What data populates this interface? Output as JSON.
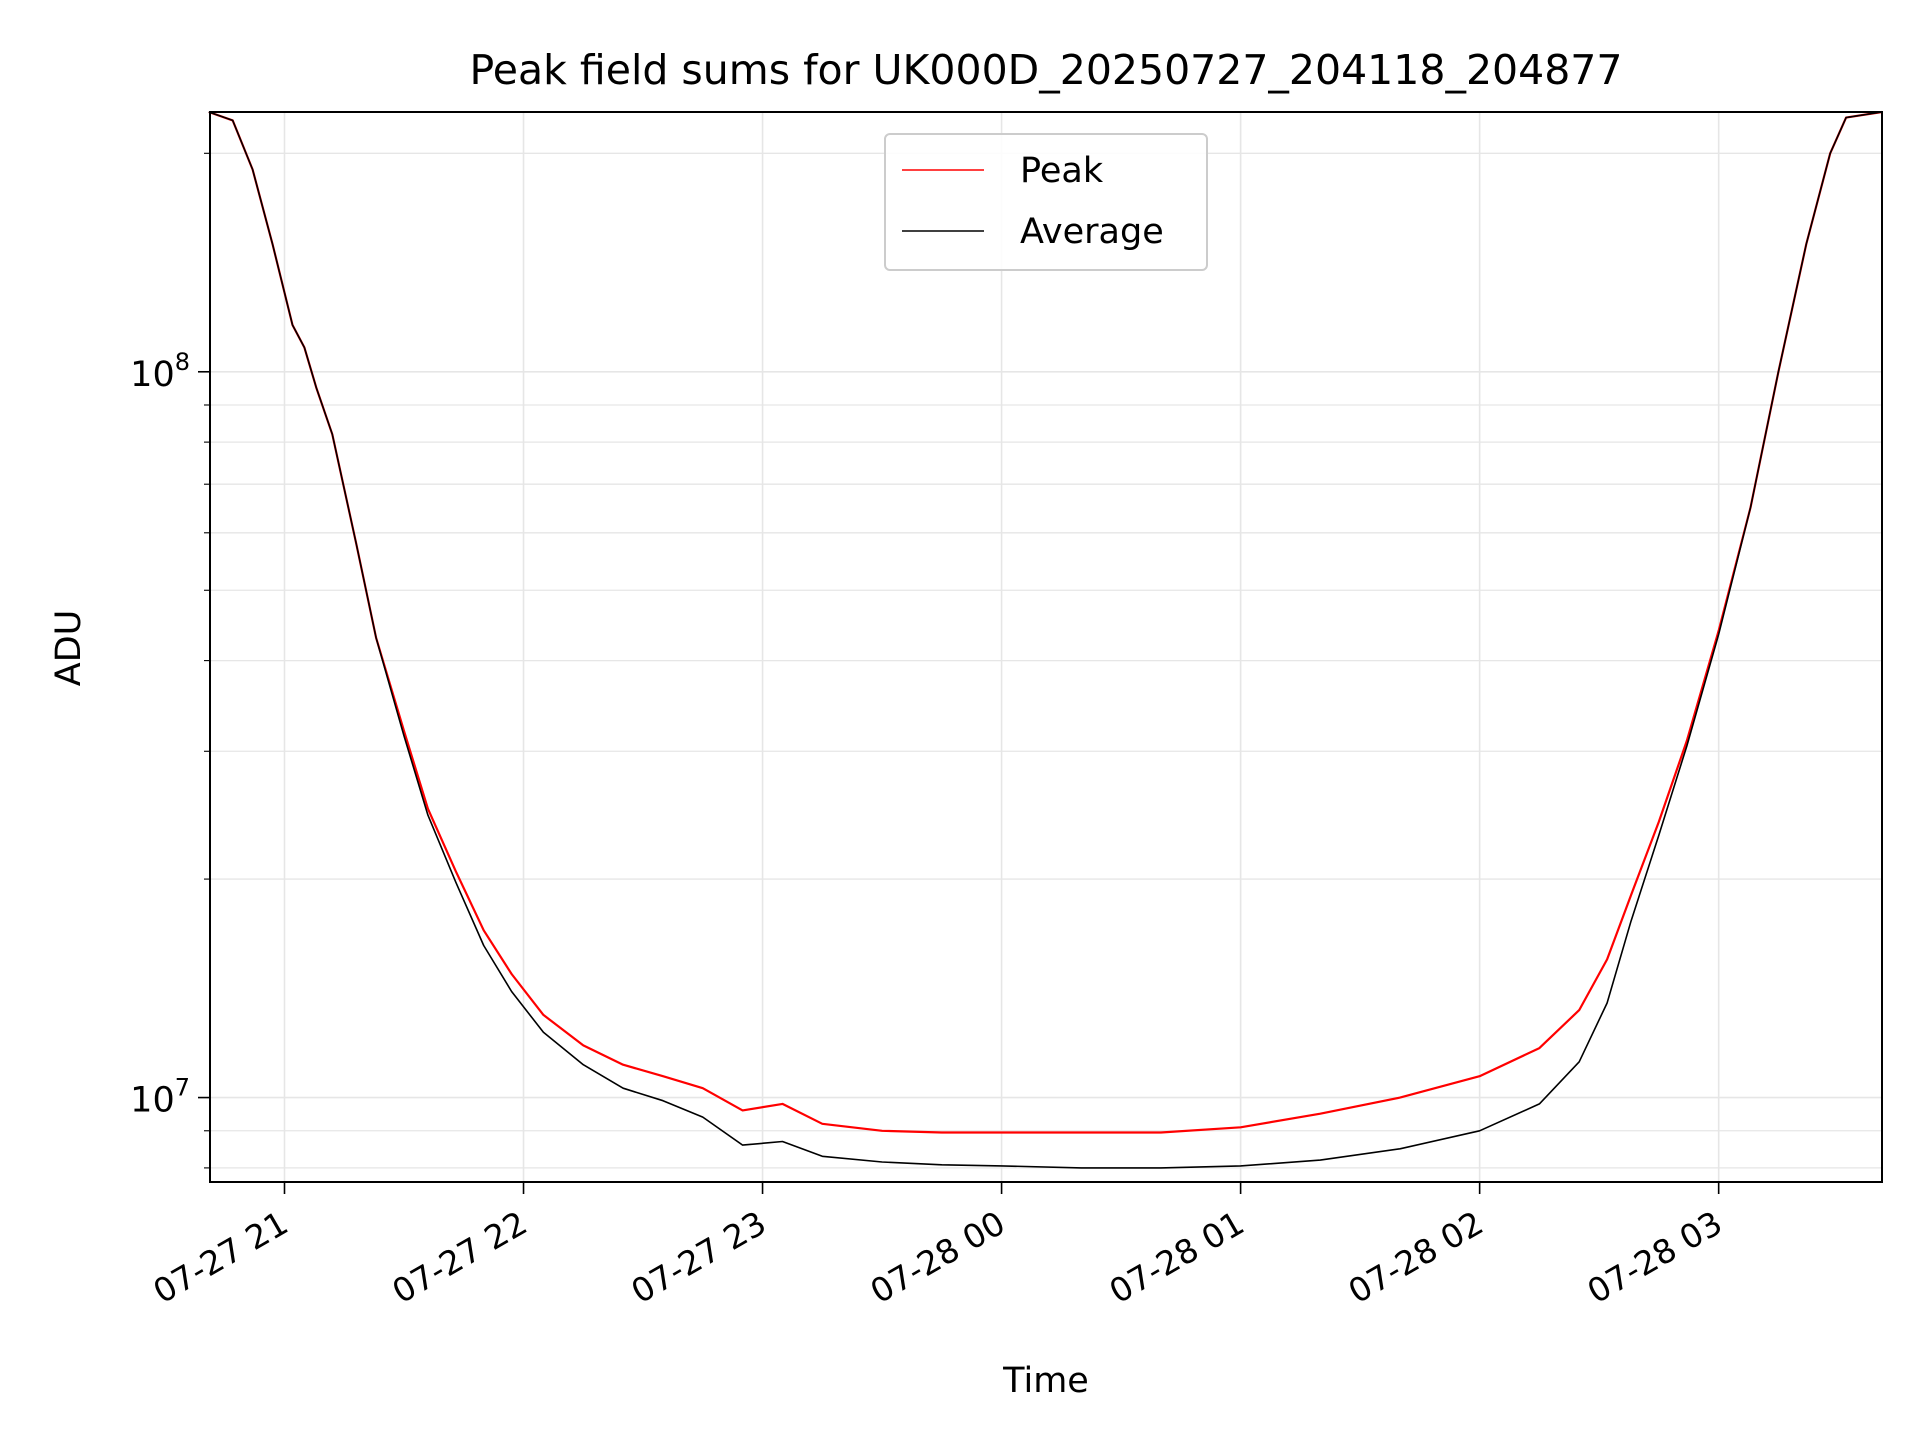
{
  "chart_data": {
    "type": "line",
    "title": "Peak field sums for UK000D_20250727_204118_204877",
    "xlabel": "Time",
    "ylabel": "ADU",
    "y_scale": "log",
    "grid": true,
    "legend_position": "upper center",
    "x_range": [
      "2025-07-27T20:41:18",
      "2025-07-28T03:41:00"
    ],
    "ylim": [
      7650000,
      228000000
    ],
    "x_ticks": [
      {
        "time": "2025-07-27T21:00",
        "label": "07-27 21"
      },
      {
        "time": "2025-07-27T22:00",
        "label": "07-27 22"
      },
      {
        "time": "2025-07-27T23:00",
        "label": "07-27 23"
      },
      {
        "time": "2025-07-28T00:00",
        "label": "07-28 00"
      },
      {
        "time": "2025-07-28T01:00",
        "label": "07-28 01"
      },
      {
        "time": "2025-07-28T02:00",
        "label": "07-28 02"
      },
      {
        "time": "2025-07-28T03:00",
        "label": "07-28 03"
      }
    ],
    "y_ticks": [
      {
        "value": 10000000,
        "base": "10",
        "exp": "7"
      },
      {
        "value": 100000000,
        "base": "10",
        "exp": "8"
      }
    ],
    "series": [
      {
        "name": "Peak",
        "color": "#ff0000",
        "points": [
          [
            "2025-07-27T20:41",
            228000000
          ],
          [
            "2025-07-27T20:47",
            222000000
          ],
          [
            "2025-07-27T20:52",
            190000000
          ],
          [
            "2025-07-27T20:57",
            150000000
          ],
          [
            "2025-07-27T21:02",
            116000000
          ],
          [
            "2025-07-27T21:05",
            108000000
          ],
          [
            "2025-07-27T21:08",
            95000000
          ],
          [
            "2025-07-27T21:12",
            82000000
          ],
          [
            "2025-07-27T21:18",
            58000000
          ],
          [
            "2025-07-27T21:23",
            43000000
          ],
          [
            "2025-07-27T21:30",
            32000000
          ],
          [
            "2025-07-27T21:36",
            25000000
          ],
          [
            "2025-07-27T21:43",
            20500000
          ],
          [
            "2025-07-27T21:50",
            17000000
          ],
          [
            "2025-07-27T21:57",
            14800000
          ],
          [
            "2025-07-27T22:05",
            13000000
          ],
          [
            "2025-07-27T22:15",
            11800000
          ],
          [
            "2025-07-27T22:25",
            11100000
          ],
          [
            "2025-07-27T22:35",
            10700000
          ],
          [
            "2025-07-27T22:45",
            10300000
          ],
          [
            "2025-07-27T22:55",
            9600000
          ],
          [
            "2025-07-27T23:05",
            9800000
          ],
          [
            "2025-07-27T23:15",
            9200000
          ],
          [
            "2025-07-27T23:30",
            9000000
          ],
          [
            "2025-07-27T23:45",
            8950000
          ],
          [
            "2025-07-28T00:00",
            8950000
          ],
          [
            "2025-07-28T00:20",
            8950000
          ],
          [
            "2025-07-28T00:40",
            8950000
          ],
          [
            "2025-07-28T01:00",
            9100000
          ],
          [
            "2025-07-28T01:20",
            9500000
          ],
          [
            "2025-07-28T01:40",
            10000000
          ],
          [
            "2025-07-28T02:00",
            10700000
          ],
          [
            "2025-07-28T02:15",
            11700000
          ],
          [
            "2025-07-28T02:25",
            13200000
          ],
          [
            "2025-07-28T02:32",
            15500000
          ],
          [
            "2025-07-28T02:38",
            19000000
          ],
          [
            "2025-07-28T02:45",
            24000000
          ],
          [
            "2025-07-28T02:52",
            31000000
          ],
          [
            "2025-07-28T03:00",
            44000000
          ],
          [
            "2025-07-28T03:08",
            65000000
          ],
          [
            "2025-07-28T03:15",
            100000000
          ],
          [
            "2025-07-28T03:22",
            150000000
          ],
          [
            "2025-07-28T03:28",
            200000000
          ],
          [
            "2025-07-28T03:32",
            224000000
          ],
          [
            "2025-07-28T03:41",
            228000000
          ]
        ]
      },
      {
        "name": "Average",
        "color": "#000000",
        "points": [
          [
            "2025-07-27T20:41",
            228000000
          ],
          [
            "2025-07-27T20:47",
            222000000
          ],
          [
            "2025-07-27T20:52",
            190000000
          ],
          [
            "2025-07-27T20:57",
            150000000
          ],
          [
            "2025-07-27T21:02",
            116000000
          ],
          [
            "2025-07-27T21:05",
            108000000
          ],
          [
            "2025-07-27T21:08",
            95000000
          ],
          [
            "2025-07-27T21:12",
            82000000
          ],
          [
            "2025-07-27T21:18",
            58000000
          ],
          [
            "2025-07-27T21:23",
            43000000
          ],
          [
            "2025-07-27T21:30",
            31500000
          ],
          [
            "2025-07-27T21:36",
            24500000
          ],
          [
            "2025-07-27T21:43",
            19800000
          ],
          [
            "2025-07-27T21:50",
            16200000
          ],
          [
            "2025-07-27T21:57",
            14000000
          ],
          [
            "2025-07-27T22:05",
            12300000
          ],
          [
            "2025-07-27T22:15",
            11100000
          ],
          [
            "2025-07-27T22:25",
            10300000
          ],
          [
            "2025-07-27T22:35",
            9900000
          ],
          [
            "2025-07-27T22:45",
            9400000
          ],
          [
            "2025-07-27T22:55",
            8600000
          ],
          [
            "2025-07-27T23:05",
            8700000
          ],
          [
            "2025-07-27T23:15",
            8300000
          ],
          [
            "2025-07-27T23:30",
            8150000
          ],
          [
            "2025-07-27T23:45",
            8080000
          ],
          [
            "2025-07-28T00:00",
            8050000
          ],
          [
            "2025-07-28T00:20",
            8000000
          ],
          [
            "2025-07-28T00:40",
            8000000
          ],
          [
            "2025-07-28T01:00",
            8050000
          ],
          [
            "2025-07-28T01:20",
            8200000
          ],
          [
            "2025-07-28T01:40",
            8500000
          ],
          [
            "2025-07-28T02:00",
            9000000
          ],
          [
            "2025-07-28T02:15",
            9800000
          ],
          [
            "2025-07-28T02:25",
            11200000
          ],
          [
            "2025-07-28T02:32",
            13500000
          ],
          [
            "2025-07-28T02:38",
            17500000
          ],
          [
            "2025-07-28T02:45",
            23000000
          ],
          [
            "2025-07-28T02:52",
            30500000
          ],
          [
            "2025-07-28T03:00",
            43500000
          ],
          [
            "2025-07-28T03:08",
            65000000
          ],
          [
            "2025-07-28T03:15",
            100000000
          ],
          [
            "2025-07-28T03:22",
            150000000
          ],
          [
            "2025-07-28T03:28",
            200000000
          ],
          [
            "2025-07-28T03:32",
            224000000
          ],
          [
            "2025-07-28T03:41",
            228000000
          ]
        ]
      }
    ]
  }
}
